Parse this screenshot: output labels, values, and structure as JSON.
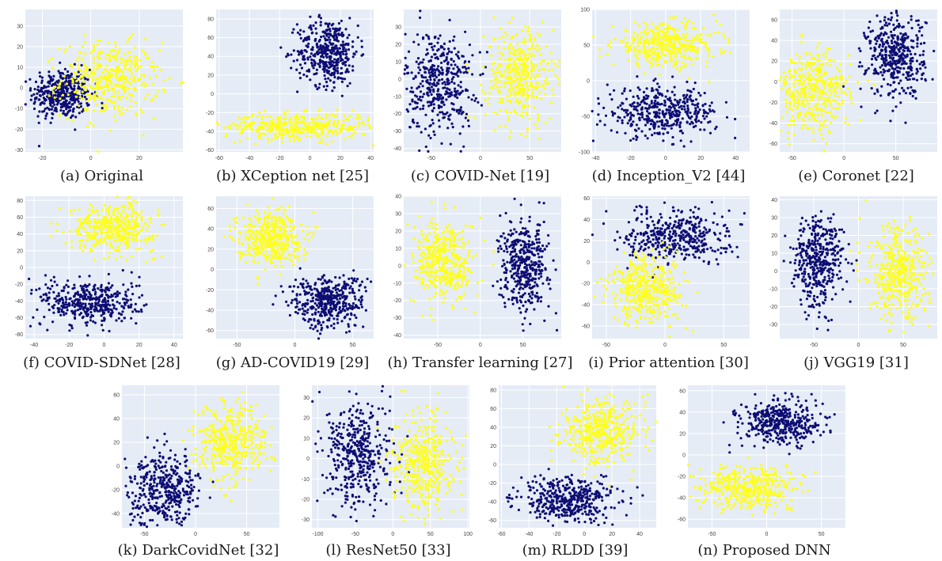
{
  "colors": {
    "class_a": "#0d0d73",
    "class_b": "#ffff1a",
    "plot_bg": "#e5ecf6",
    "grid": "#ffffff"
  },
  "chart_data": [
    {
      "type": "scatter",
      "caption": "(a) Original",
      "xticks": [
        -20,
        0,
        20
      ],
      "yticks": [
        -30,
        -20,
        -10,
        0,
        10,
        20,
        30
      ],
      "xlim": [
        -27,
        38
      ],
      "ylim": [
        -31,
        38
      ],
      "grid": true,
      "clusters": [
        {
          "class": "class_a",
          "cx": -12,
          "cy": -3,
          "sx": 6,
          "sy": 6
        },
        {
          "class": "class_b",
          "cx": 8,
          "cy": 4,
          "sx": 10,
          "sy": 9
        }
      ]
    },
    {
      "type": "scatter",
      "caption": "(b) XCeption net [25]",
      "xticks": [
        -60,
        -40,
        -20,
        0,
        20,
        40
      ],
      "yticks": [
        -60,
        -40,
        -20,
        0,
        20,
        40,
        60,
        80
      ],
      "xlim": [
        -62,
        42
      ],
      "ylim": [
        -62,
        90
      ],
      "grid": true,
      "clusters": [
        {
          "class": "class_a",
          "cx": 12,
          "cy": 45,
          "sx": 10,
          "sy": 18
        },
        {
          "class": "class_b",
          "cx": -8,
          "cy": -35,
          "sx": 24,
          "sy": 7
        }
      ]
    },
    {
      "type": "scatter",
      "caption": "(c) COVID-Net [19]",
      "xticks": [
        -50,
        0,
        50
      ],
      "yticks": [
        -40,
        -30,
        -20,
        -10,
        0,
        10,
        20,
        30
      ],
      "xlim": [
        -78,
        82
      ],
      "ylim": [
        -42,
        40
      ],
      "grid": true,
      "clusters": [
        {
          "class": "class_a",
          "cx": -42,
          "cy": -2,
          "sx": 17,
          "sy": 15
        },
        {
          "class": "class_b",
          "cx": 40,
          "cy": 2,
          "sx": 17,
          "sy": 14
        }
      ]
    },
    {
      "type": "scatter",
      "caption": "(d) Inception_V2 [44]",
      "xticks": [
        -40,
        -20,
        0,
        20,
        40
      ],
      "yticks": [
        -100,
        -50,
        0,
        50,
        100
      ],
      "xlim": [
        -42,
        48
      ],
      "ylim": [
        -100,
        100
      ],
      "grid": true,
      "clusters": [
        {
          "class": "class_b",
          "cx": 0,
          "cy": 50,
          "sx": 15,
          "sy": 15
        },
        {
          "class": "class_a",
          "cx": -2,
          "cy": -45,
          "sx": 16,
          "sy": 17
        }
      ]
    },
    {
      "type": "scatter",
      "caption": "(e) Coronet [22]",
      "xticks": [
        -50,
        0,
        50
      ],
      "yticks": [
        -60,
        -40,
        -20,
        0,
        20,
        40,
        60
      ],
      "xlim": [
        -62,
        90
      ],
      "ylim": [
        -68,
        70
      ],
      "grid": true,
      "clusters": [
        {
          "class": "class_a",
          "cx": 50,
          "cy": 25,
          "sx": 14,
          "sy": 20
        },
        {
          "class": "class_b",
          "cx": -30,
          "cy": -10,
          "sx": 18,
          "sy": 20
        }
      ]
    },
    {
      "type": "scatter",
      "caption": "(f) COVID-SDNet [28]",
      "xticks": [
        -40,
        -20,
        0,
        20,
        40
      ],
      "yticks": [
        -80,
        -60,
        -40,
        -20,
        0,
        20,
        40,
        60,
        80
      ],
      "xlim": [
        -45,
        45
      ],
      "ylim": [
        -85,
        85
      ],
      "grid": true,
      "clusters": [
        {
          "class": "class_b",
          "cx": 5,
          "cy": 48,
          "sx": 12,
          "sy": 14
        },
        {
          "class": "class_a",
          "cx": -8,
          "cy": -42,
          "sx": 14,
          "sy": 14
        }
      ]
    },
    {
      "type": "scatter",
      "caption": "(g) AD-COVID19 [29]",
      "xticks": [
        -50,
        0,
        50
      ],
      "yticks": [
        -60,
        -40,
        -20,
        0,
        20,
        40,
        60
      ],
      "xlim": [
        -68,
        68
      ],
      "ylim": [
        -68,
        72
      ],
      "grid": true,
      "clusters": [
        {
          "class": "class_b",
          "cx": -22,
          "cy": 32,
          "sx": 14,
          "sy": 13
        },
        {
          "class": "class_a",
          "cx": 28,
          "cy": -32,
          "sx": 16,
          "sy": 13
        }
      ]
    },
    {
      "type": "scatter",
      "caption": "(h) Transfer learning [27]",
      "xticks": [
        -50,
        0,
        50
      ],
      "yticks": [
        -40,
        -30,
        -20,
        -10,
        0,
        10,
        20,
        30,
        40
      ],
      "xlim": [
        -90,
        95
      ],
      "ylim": [
        -42,
        40
      ],
      "grid": true,
      "clusters": [
        {
          "class": "class_b",
          "cx": -42,
          "cy": 2,
          "sx": 18,
          "sy": 12
        },
        {
          "class": "class_a",
          "cx": 52,
          "cy": 0,
          "sx": 14,
          "sy": 13
        }
      ]
    },
    {
      "type": "scatter",
      "caption": "(i) Prior attention [30]",
      "xticks": [
        -50,
        0,
        50
      ],
      "yticks": [
        -60,
        -40,
        -20,
        0,
        20,
        40,
        60
      ],
      "xlim": [
        -62,
        72
      ],
      "ylim": [
        -72,
        62
      ],
      "grid": true,
      "clusters": [
        {
          "class": "class_a",
          "cx": 10,
          "cy": 25,
          "sx": 22,
          "sy": 12
        },
        {
          "class": "class_b",
          "cx": -15,
          "cy": -25,
          "sx": 16,
          "sy": 16
        }
      ]
    },
    {
      "type": "scatter",
      "caption": "(j) VGG19 [31]",
      "xticks": [
        -50,
        0,
        50
      ],
      "yticks": [
        -30,
        -20,
        -10,
        0,
        10,
        20,
        30,
        40
      ],
      "xlim": [
        -88,
        88
      ],
      "ylim": [
        -38,
        42
      ],
      "grid": true,
      "clusters": [
        {
          "class": "class_a",
          "cx": -45,
          "cy": 5,
          "sx": 14,
          "sy": 13
        },
        {
          "class": "class_b",
          "cx": 45,
          "cy": -2,
          "sx": 17,
          "sy": 13
        }
      ]
    },
    {
      "type": "scatter",
      "caption": "(k) DarkCovidNet [32]",
      "xticks": [
        -50,
        0,
        50
      ],
      "yticks": [
        -40,
        -20,
        0,
        20,
        40,
        60
      ],
      "xlim": [
        -72,
        82
      ],
      "ylim": [
        -52,
        68
      ],
      "grid": true,
      "clusters": [
        {
          "class": "class_a",
          "cx": -30,
          "cy": -20,
          "sx": 17,
          "sy": 15
        },
        {
          "class": "class_b",
          "cx": 35,
          "cy": 20,
          "sx": 17,
          "sy": 16
        }
      ]
    },
    {
      "type": "scatter",
      "caption": "(l) ResNet50 [33]",
      "xticks": [
        -100,
        -50,
        0,
        50,
        100
      ],
      "yticks": [
        -30,
        -20,
        -10,
        0,
        10,
        20,
        30
      ],
      "xlim": [
        -108,
        102
      ],
      "ylim": [
        -34,
        36
      ],
      "grid": true,
      "clusters": [
        {
          "class": "class_a",
          "cx": -45,
          "cy": 2,
          "sx": 22,
          "sy": 13
        },
        {
          "class": "class_b",
          "cx": 42,
          "cy": -2,
          "sx": 20,
          "sy": 12
        }
      ]
    },
    {
      "type": "scatter",
      "caption": "(m) RLDD [39]",
      "xticks": [
        -60,
        -40,
        -20,
        0,
        20,
        40
      ],
      "yticks": [
        -60,
        -40,
        -20,
        0,
        20,
        40,
        60,
        80
      ],
      "xlim": [
        -62,
        52
      ],
      "ylim": [
        -68,
        85
      ],
      "grid": true,
      "clusters": [
        {
          "class": "class_b",
          "cx": 12,
          "cy": 35,
          "sx": 14,
          "sy": 17
        },
        {
          "class": "class_a",
          "cx": -12,
          "cy": -38,
          "sx": 18,
          "sy": 12
        }
      ]
    },
    {
      "type": "scatter",
      "caption": "(n) Proposed DNN",
      "xticks": [
        -50,
        0,
        50
      ],
      "yticks": [
        -60,
        -40,
        -20,
        0,
        20,
        40,
        60
      ],
      "xlim": [
        -72,
        72
      ],
      "ylim": [
        -68,
        65
      ],
      "grid": true,
      "clusters": [
        {
          "class": "class_a",
          "cx": 12,
          "cy": 30,
          "sx": 18,
          "sy": 10
        },
        {
          "class": "class_b",
          "cx": -15,
          "cy": -30,
          "sx": 22,
          "sy": 10
        }
      ]
    }
  ]
}
